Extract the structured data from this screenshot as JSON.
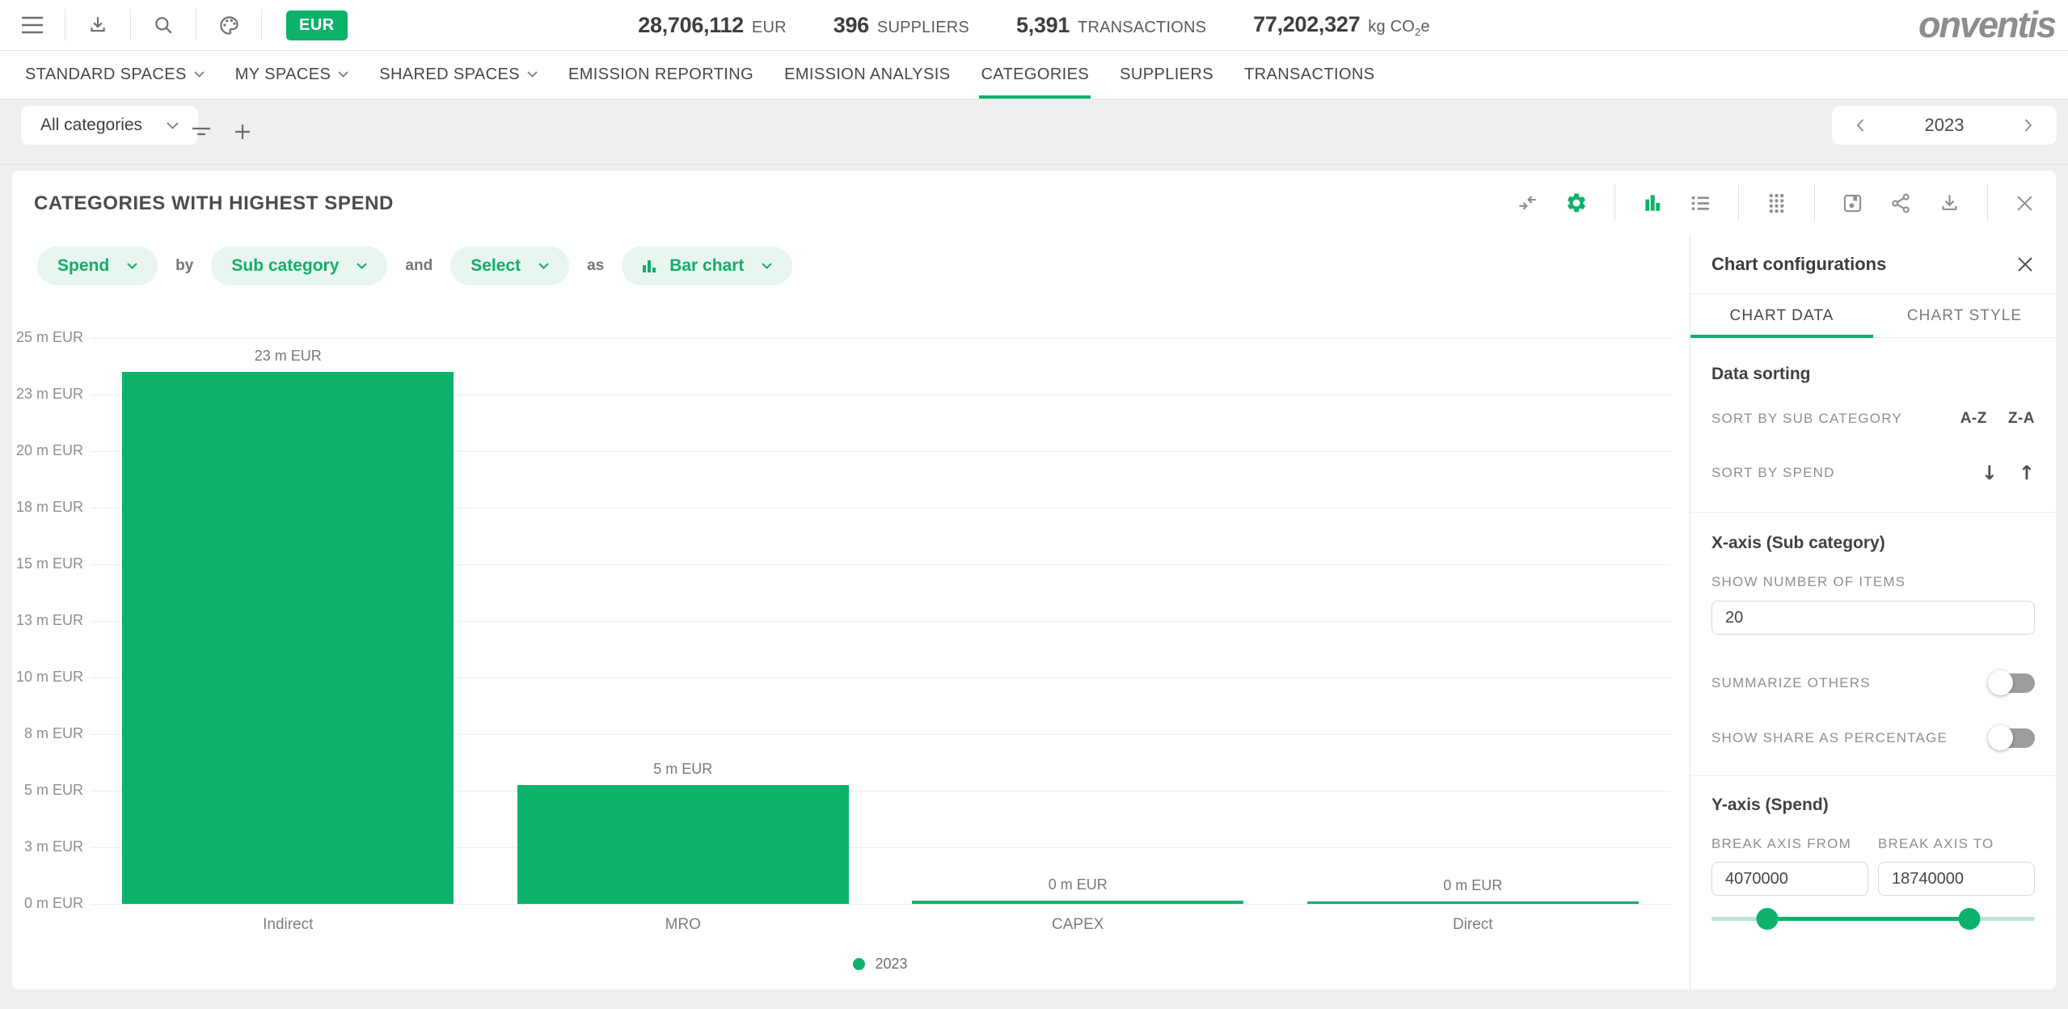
{
  "colors": {
    "accent_green": "#0db26a",
    "chip_bg": "#e9f6ef",
    "chip_text": "#13ad68",
    "bar_green": "#0db26a"
  },
  "topbar": {
    "icons": [
      "hamburger-menu",
      "download",
      "search",
      "theme-palette"
    ],
    "currency_badge": "EUR",
    "stats": [
      {
        "value": "28,706,112",
        "unit": "EUR"
      },
      {
        "value": "396",
        "unit": "SUPPLIERS"
      },
      {
        "value": "5,391",
        "unit": "TRANSACTIONS"
      },
      {
        "value": "77,202,327",
        "unit_pre": "kg CO",
        "unit_sub": "2",
        "unit_post": "e"
      }
    ],
    "logo": "onventis"
  },
  "nav": {
    "items": [
      {
        "label": "STANDARD SPACES",
        "has_dropdown": true,
        "active": false
      },
      {
        "label": "MY SPACES",
        "has_dropdown": true,
        "active": false
      },
      {
        "label": "SHARED SPACES",
        "has_dropdown": true,
        "active": false
      },
      {
        "label": "EMISSION REPORTING",
        "has_dropdown": false,
        "active": false
      },
      {
        "label": "EMISSION ANALYSIS",
        "has_dropdown": false,
        "active": false
      },
      {
        "label": "CATEGORIES",
        "has_dropdown": false,
        "active": true
      },
      {
        "label": "SUPPLIERS",
        "has_dropdown": false,
        "active": false
      },
      {
        "label": "TRANSACTIONS",
        "has_dropdown": false,
        "active": false
      }
    ]
  },
  "filterbar": {
    "category_filter": "All categories",
    "icons": [
      "filter",
      "add"
    ],
    "year": "2023"
  },
  "card": {
    "title": "CATEGORIES WITH HIGHEST SPEND",
    "toolbar_icons": [
      "collapse-horizontal",
      "settings-gear",
      "bar-chart-view",
      "list-view",
      "grid-view",
      "save",
      "share",
      "download",
      "close"
    ]
  },
  "query_builder": {
    "metric": "Spend",
    "connector_by": "by",
    "dimension": "Sub category",
    "connector_and": "and",
    "filter_placeholder": "Select",
    "connector_as": "as",
    "chart_type": "Bar chart"
  },
  "chart_data": {
    "type": "bar",
    "title": "CATEGORIES WITH HIGHEST SPEND",
    "categories": [
      "Indirect",
      "MRO",
      "CAPEX",
      "Direct"
    ],
    "values_m_eur": [
      23.5,
      5.25,
      0.15,
      0.05
    ],
    "value_labels": [
      "23 m EUR",
      "5 m EUR",
      "0 m EUR",
      "0 m EUR"
    ],
    "y_ticks": [
      "25 m EUR",
      "23 m EUR",
      "20 m EUR",
      "18 m EUR",
      "15 m EUR",
      "13 m EUR",
      "10 m EUR",
      "8 m EUR",
      "5 m EUR",
      "3 m EUR",
      "0 m EUR"
    ],
    "ylim": [
      0,
      25
    ],
    "xlabel": "Sub category",
    "ylabel": "Spend",
    "grid": true,
    "legend_position": "bottom",
    "legend": [
      {
        "label": "2023",
        "color": "#0db26a"
      }
    ],
    "bar_color": "#0db26a"
  },
  "panel": {
    "title": "Chart configurations",
    "tabs": [
      {
        "label": "CHART DATA",
        "active": true
      },
      {
        "label": "CHART STYLE",
        "active": false
      }
    ],
    "sections": {
      "data_sorting": {
        "heading": "Data sorting",
        "rows": [
          {
            "label": "SORT BY SUB CATEGORY",
            "controls": [
              "A-Z",
              "Z-A"
            ]
          },
          {
            "label": "SORT BY SPEND",
            "controls": [
              "↓",
              "↑"
            ]
          }
        ]
      },
      "x_axis": {
        "heading": "X-axis (Sub category)",
        "items_label": "SHOW NUMBER OF ITEMS",
        "items_value": "20",
        "toggles": [
          {
            "label": "SUMMARIZE OTHERS",
            "on": false
          },
          {
            "label": "SHOW SHARE AS PERCENTAGE",
            "on": false
          }
        ]
      },
      "y_axis": {
        "heading": "Y-axis (Spend)",
        "from_label": "BREAK AXIS FROM",
        "from_value": "4070000",
        "to_label": "BREAK AXIS TO",
        "to_value": "18740000"
      }
    }
  }
}
